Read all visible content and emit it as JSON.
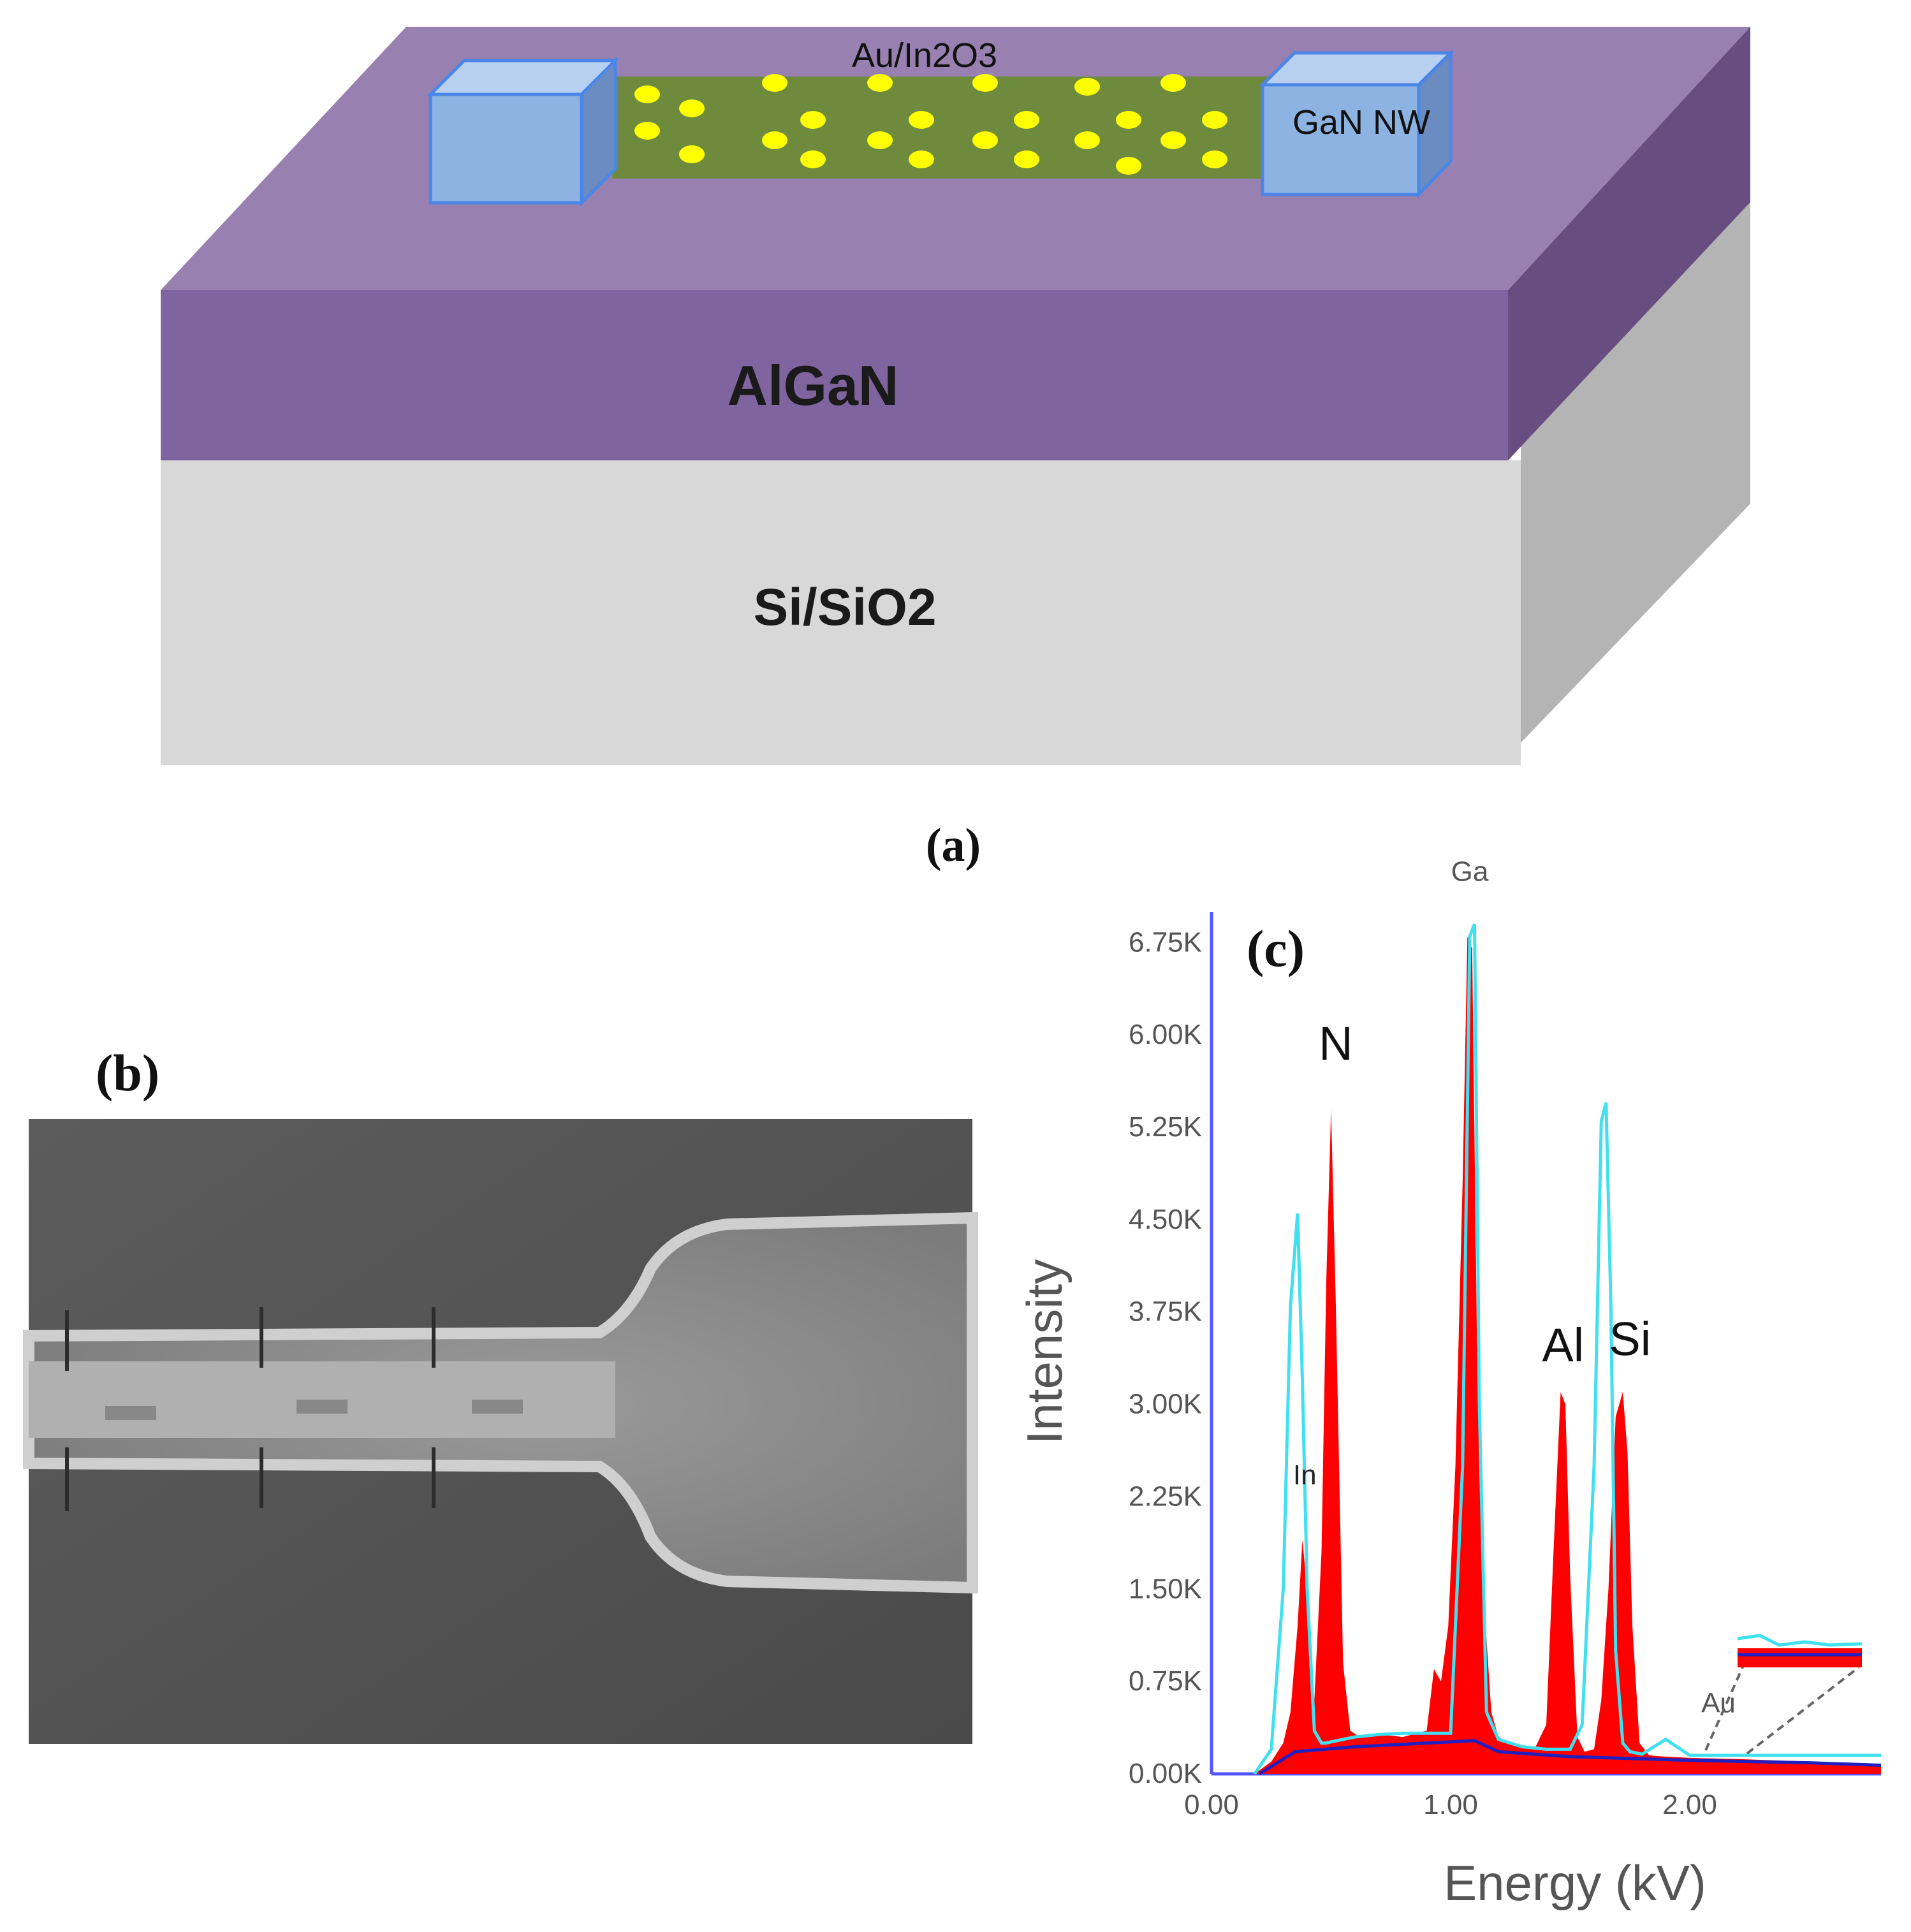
{
  "panel_a": {
    "caption": "(a)",
    "labels": {
      "catalyst": "Au/In2O3",
      "nanowire": "GaN NW",
      "barrier": "AlGaN",
      "substrate": "Si/SiO2"
    },
    "colors": {
      "purple_top": "#9880B0",
      "purple_front": "#8064A0",
      "purple_side": "#684E80",
      "substrate_front": "#D8D8D8",
      "substrate_side": "#B4B4B4",
      "pad_fill": "#8DB3E2",
      "pad_border": "#4A86E8",
      "wire": "#6E8B3D",
      "dots": "#FFFF00"
    }
  },
  "panel_b": {
    "label": "(b)",
    "image_kind": "SEM micrograph of nanowire device"
  },
  "panel_c": {
    "label": "(c)"
  },
  "chart_data": {
    "type": "area",
    "title": "",
    "xlabel": "Energy (kV)",
    "ylabel": "Intensity",
    "xlim": [
      0.0,
      2.8
    ],
    "ylim": [
      0,
      7000
    ],
    "x_ticks": [
      "0.00",
      "1.00",
      "2.00"
    ],
    "y_ticks": [
      "0.00K",
      "0.75K",
      "1.50K",
      "2.25K",
      "3.00K",
      "3.75K",
      "4.50K",
      "5.25K",
      "6.00K",
      "6.75K"
    ],
    "series": [
      {
        "color": "#FF0000",
        "x": [
          0.18,
          0.25,
          0.3,
          0.33,
          0.36,
          0.38,
          0.4,
          0.43,
          0.46,
          0.48,
          0.5,
          0.52,
          0.55,
          0.58,
          0.62,
          0.7,
          0.8,
          0.9,
          0.93,
          0.96,
          0.99,
          1.02,
          1.05,
          1.07,
          1.09,
          1.11,
          1.14,
          1.17,
          1.2,
          1.25,
          1.35,
          1.4,
          1.43,
          1.46,
          1.48,
          1.5,
          1.53,
          1.56,
          1.6,
          1.63,
          1.66,
          1.69,
          1.72,
          1.74,
          1.76,
          1.79,
          1.83,
          1.9,
          2.0,
          2.2,
          2.5,
          2.8
        ],
        "values": [
          0,
          100,
          250,
          500,
          1200,
          1900,
          1500,
          600,
          1800,
          4000,
          5400,
          3800,
          900,
          350,
          300,
          320,
          300,
          350,
          850,
          750,
          1200,
          2500,
          4800,
          6800,
          6700,
          3500,
          1400,
          500,
          300,
          250,
          200,
          400,
          1800,
          3100,
          3000,
          1600,
          300,
          180,
          200,
          600,
          1500,
          2900,
          3100,
          2600,
          1200,
          250,
          150,
          140,
          130,
          120,
          100,
          80
        ]
      },
      {
        "color": "#40E0F0",
        "x": [
          0.18,
          0.25,
          0.3,
          0.33,
          0.36,
          0.38,
          0.4,
          0.43,
          0.46,
          0.48,
          0.5,
          0.55,
          0.6,
          0.7,
          0.8,
          0.9,
          1.0,
          1.05,
          1.08,
          1.1,
          1.12,
          1.15,
          1.2,
          1.3,
          1.4,
          1.5,
          1.55,
          1.6,
          1.63,
          1.65,
          1.67,
          1.69,
          1.72,
          1.75,
          1.8,
          1.9,
          2.0,
          2.1,
          2.2,
          2.5,
          2.8
        ],
        "values": [
          0,
          200,
          1500,
          3800,
          4550,
          3200,
          1500,
          350,
          250,
          250,
          260,
          280,
          300,
          320,
          330,
          330,
          330,
          2500,
          6800,
          6900,
          3000,
          500,
          280,
          220,
          200,
          200,
          400,
          2500,
          5300,
          5450,
          3800,
          1000,
          250,
          180,
          160,
          280,
          150,
          150,
          150,
          150,
          150
        ]
      }
    ],
    "annotations": [
      "Ga",
      "N",
      "In",
      "Al",
      "Si",
      "Au"
    ]
  }
}
